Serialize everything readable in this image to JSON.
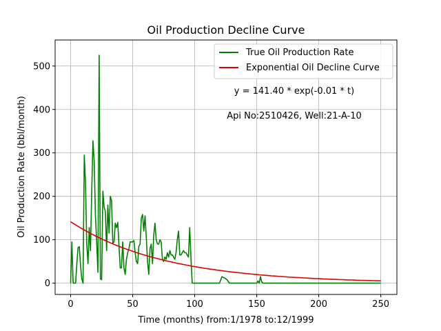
{
  "chart_data": {
    "type": "line",
    "title": "Oil Production Decline Curve",
    "xlabel": "Time (months) from:1/1978 to:12/1999",
    "ylabel": "Oil Production Rate (bbl/month)",
    "xlim": [
      -12.5,
      263
    ],
    "ylim": [
      -26,
      560
    ],
    "xticks": [
      0,
      50,
      100,
      150,
      200,
      250
    ],
    "yticks": [
      0,
      100,
      200,
      300,
      400,
      500
    ],
    "grid": true,
    "legend_position": "top-right",
    "annotations": [
      {
        "text": "y = 141.40 * exp(-0.01 * t)",
        "x": 180,
        "y": 430
      },
      {
        "text": "Api No:2510426, Well:21-A-10",
        "x": 180,
        "y": 373
      }
    ],
    "series": [
      {
        "name": "True Oil Production Rate",
        "color": "#008000",
        "kind": "points",
        "x": [
          0,
          1,
          2,
          3,
          4,
          5,
          6,
          7,
          8,
          9,
          10,
          11,
          12,
          13,
          14,
          15,
          16,
          17,
          18,
          19,
          20,
          21,
          22,
          23,
          24,
          25,
          26,
          27,
          28,
          29,
          30,
          31,
          32,
          33,
          34,
          35,
          36,
          37,
          38,
          39,
          40,
          41,
          42,
          43,
          44,
          45,
          46,
          47,
          48,
          49,
          50,
          51,
          52,
          53,
          54,
          55,
          56,
          57,
          58,
          59,
          60,
          61,
          62,
          63,
          64,
          65,
          66,
          67,
          68,
          69,
          70,
          71,
          72,
          73,
          74,
          75,
          76,
          77,
          78,
          79,
          80,
          81,
          82,
          83,
          84,
          85,
          86,
          87,
          88,
          89,
          90,
          91,
          92,
          93,
          94,
          95,
          96,
          97,
          98,
          99,
          100,
          120,
          122,
          124,
          126,
          128,
          130,
          150,
          151,
          152,
          153,
          154,
          155,
          156,
          157,
          158,
          160,
          250
        ],
        "y": [
          0,
          95,
          0,
          0,
          0,
          45,
          82,
          84,
          40,
          10,
          0,
          295,
          230,
          90,
          45,
          128,
          75,
          210,
          328,
          280,
          155,
          95,
          25,
          525,
          10,
          8,
          212,
          175,
          165,
          75,
          180,
          115,
          200,
          190,
          92,
          95,
          138,
          128,
          140,
          85,
          35,
          35,
          95,
          35,
          20,
          55,
          70,
          80,
          95,
          95,
          95,
          98,
          70,
          50,
          45,
          85,
          90,
          150,
          158,
          120,
          155,
          105,
          50,
          20,
          80,
          90,
          45,
          110,
          138,
          100,
          90,
          90,
          100,
          95,
          55,
          50,
          60,
          55,
          70,
          60,
          75,
          65,
          65,
          60,
          55,
          70,
          100,
          120,
          65,
          65,
          70,
          75,
          70,
          70,
          65,
          60,
          128,
          60,
          0,
          0,
          0,
          0,
          15,
          12,
          8,
          0,
          0,
          0,
          5,
          0,
          15,
          3,
          0,
          0,
          0,
          0,
          0,
          0
        ]
      },
      {
        "name": "Exponential Oil Decline Curve",
        "color": "#dd0000",
        "kind": "formula",
        "a": 141.4,
        "b": 0.0131,
        "x_range": [
          0,
          250
        ]
      }
    ]
  }
}
